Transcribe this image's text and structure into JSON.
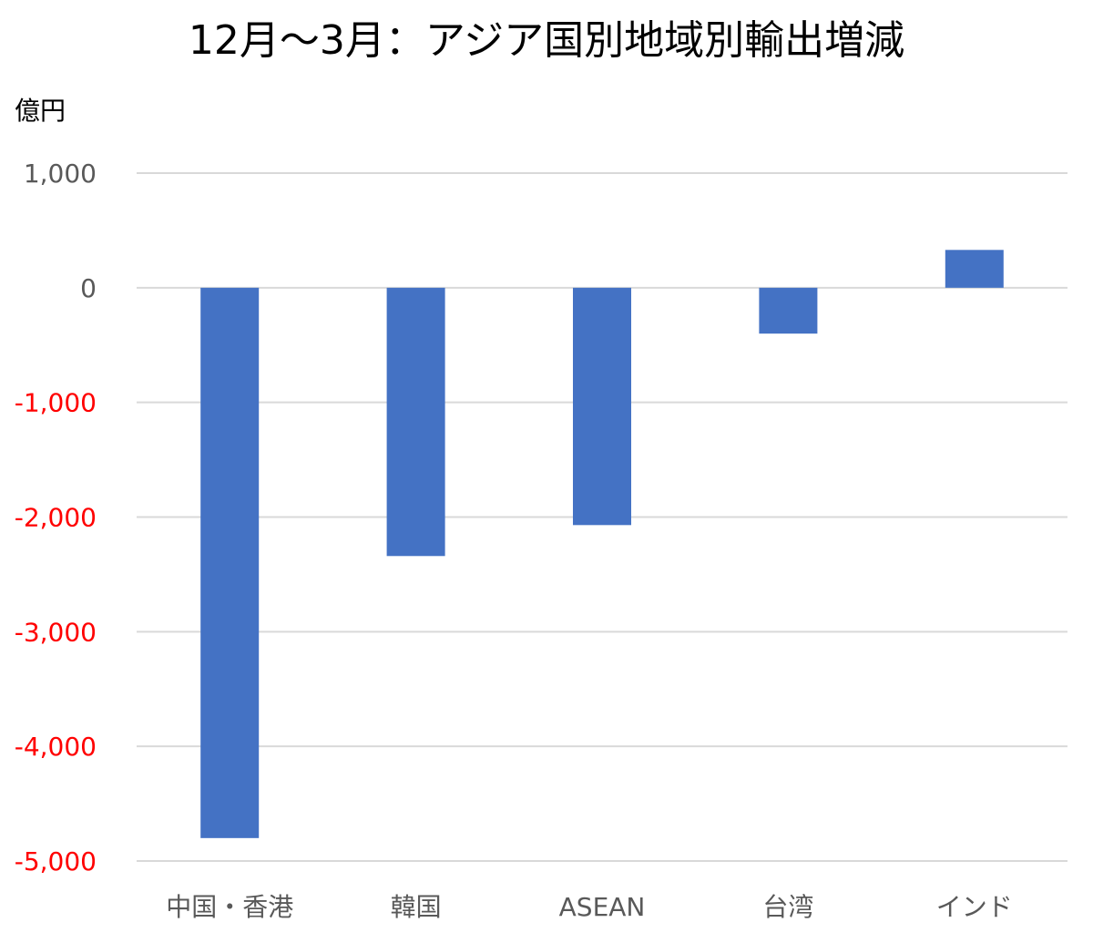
{
  "chart_data": {
    "type": "bar",
    "title": "12月～3月：アジア国別地域別輸出増減",
    "ylabel": "億円",
    "categories": [
      "中国・香港",
      "韓国",
      "ASEAN",
      "台湾",
      "インド"
    ],
    "values": [
      -4800,
      -2340,
      -2070,
      -400,
      330
    ],
    "ylim": [
      -5000,
      1000
    ],
    "yticks": [
      1000,
      0,
      -1000,
      -2000,
      -3000,
      -4000,
      -5000
    ],
    "ytick_labels": [
      "1,000",
      "0",
      "-1,000",
      "-2,000",
      "-3,000",
      "-4,000",
      "-5,000"
    ],
    "grid": true,
    "legend": "none"
  },
  "colors": {
    "bar": "#4472C4",
    "grid": "#D9D9D9",
    "positive_tick": "#595959",
    "negative_tick": "#FF0000"
  }
}
